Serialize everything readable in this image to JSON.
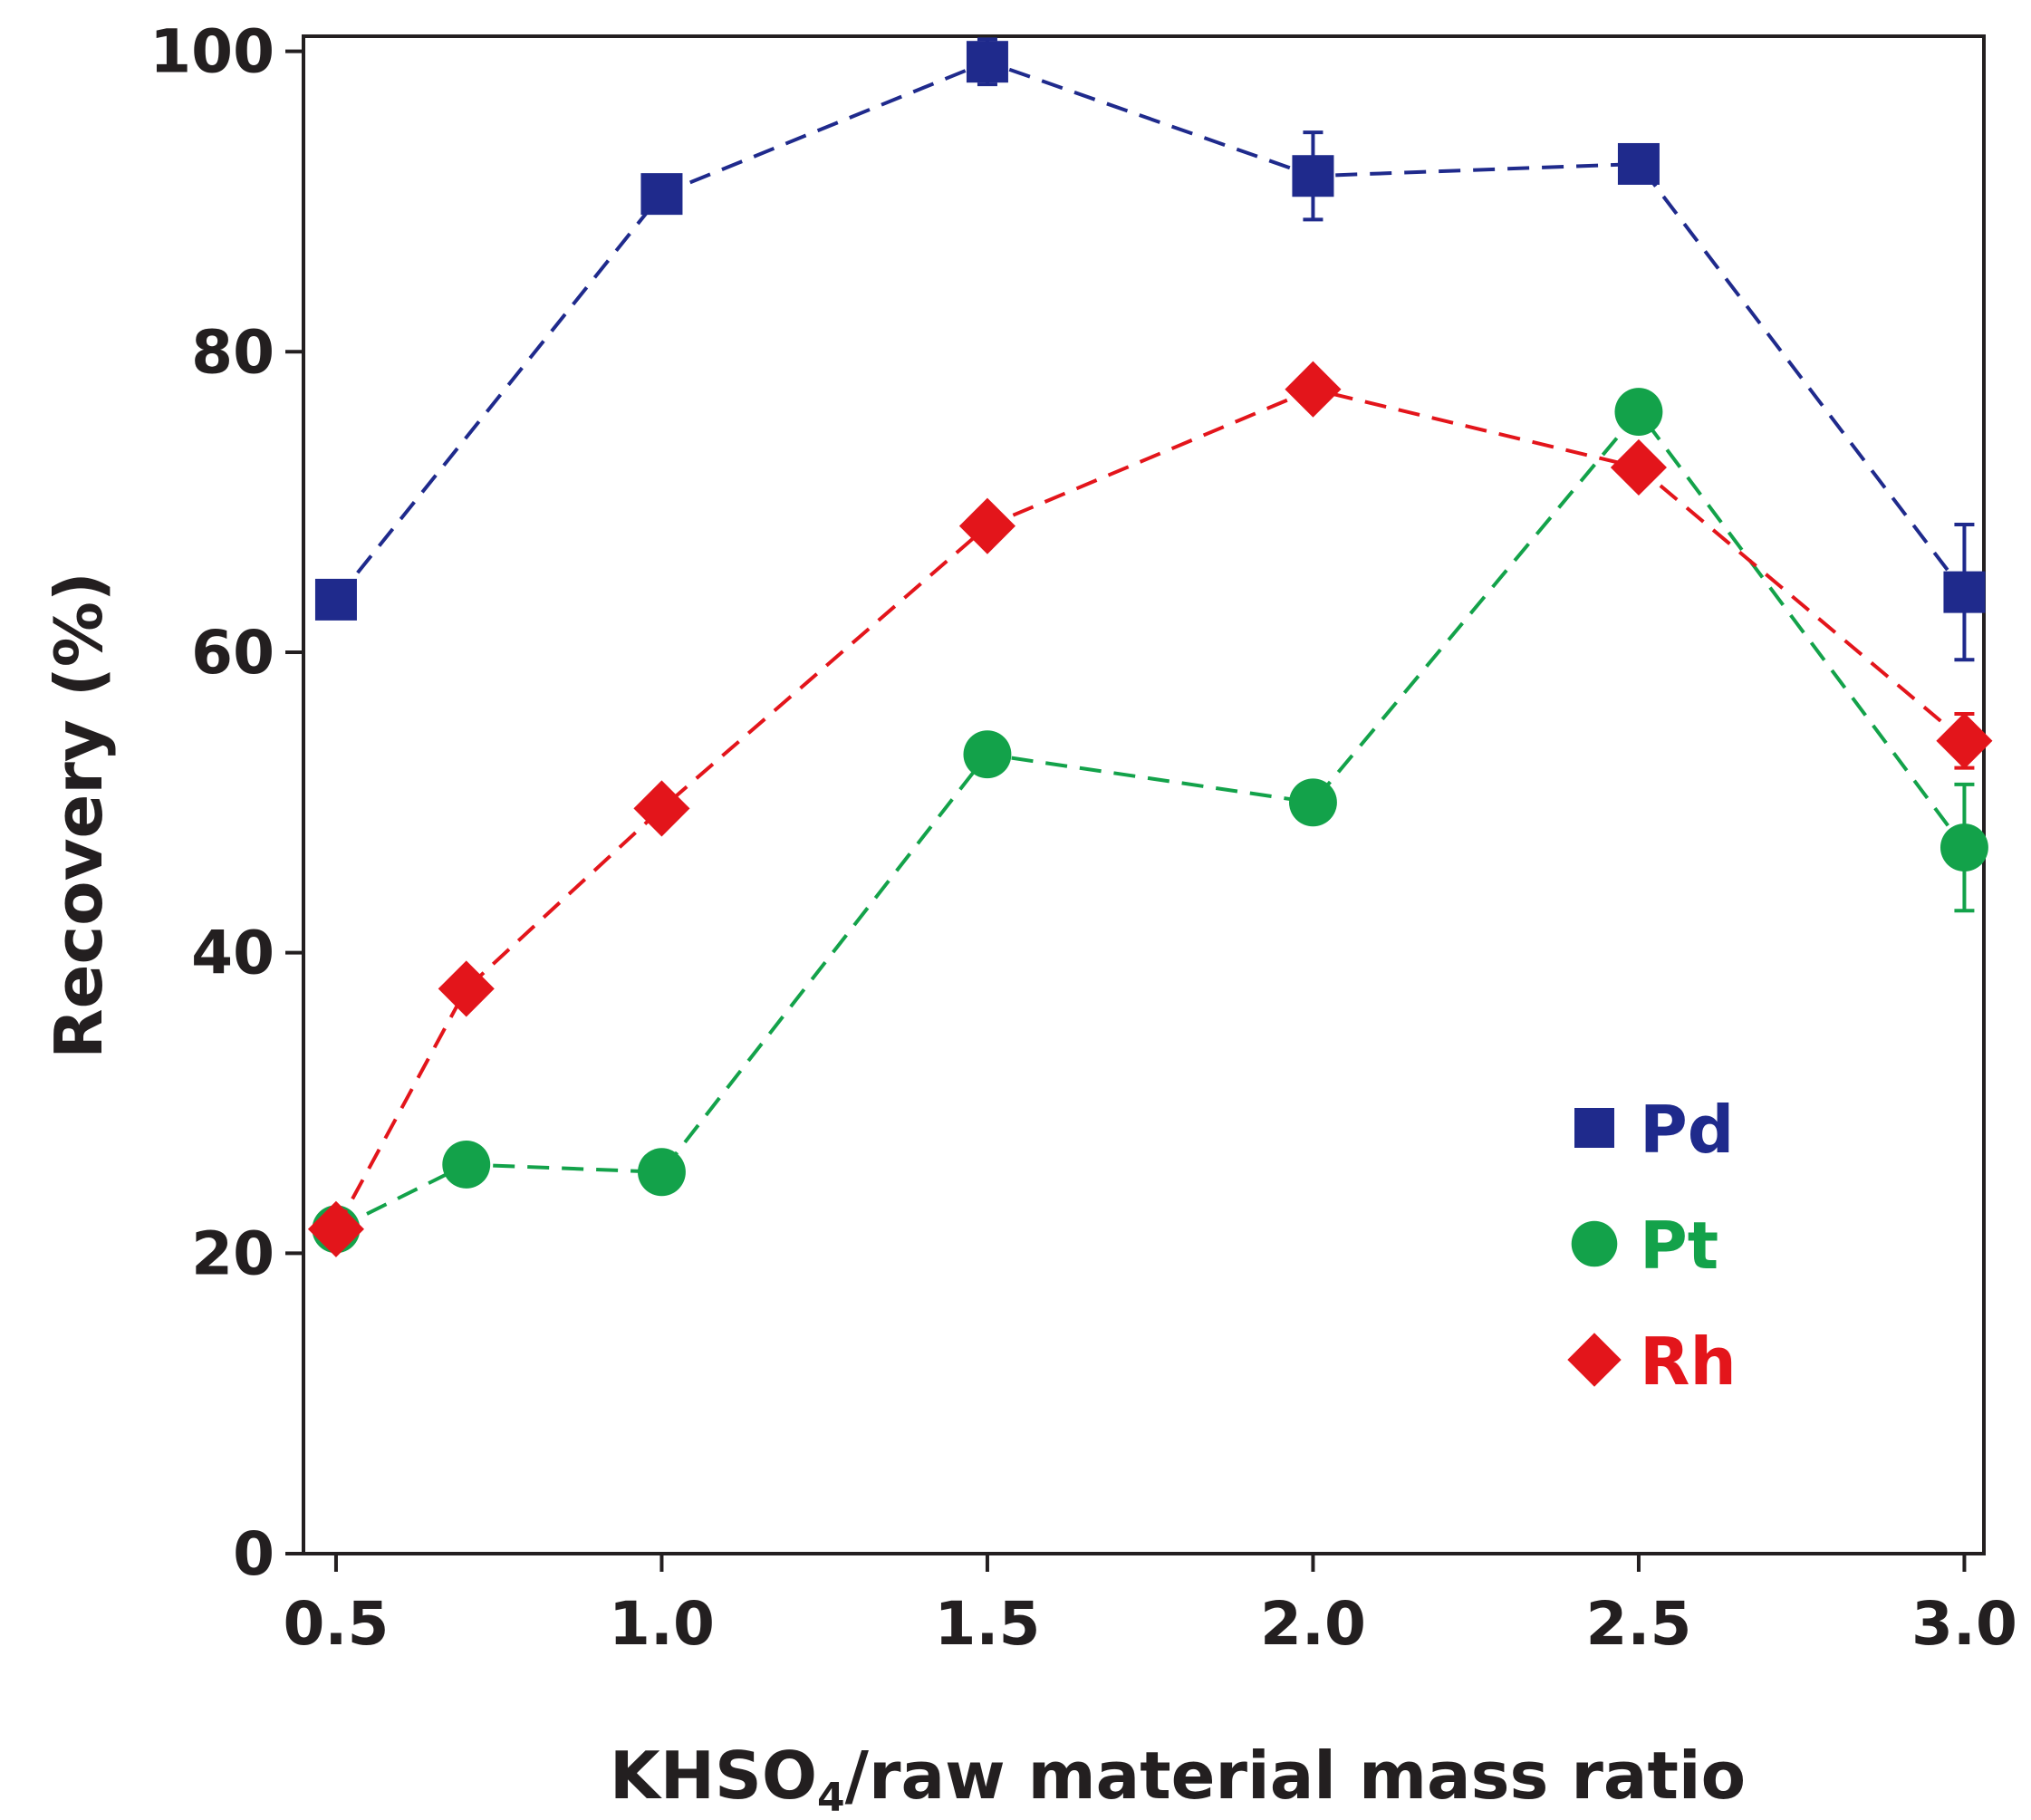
{
  "chart_data": {
    "type": "line",
    "title": "",
    "xlabel_main": "KHSO",
    "xlabel_sub": "4",
    "xlabel_rest": "/raw material mass ratio",
    "ylabel": "Recovery (%)",
    "xlim": [
      0.45,
      3.03
    ],
    "ylim": [
      0,
      101
    ],
    "x_ticks": [
      0.5,
      1.0,
      1.5,
      2.0,
      2.5,
      3.0
    ],
    "x_tick_labels": [
      "0.5",
      "1.0",
      "1.5",
      "2.0",
      "2.5",
      "3.0"
    ],
    "y_ticks": [
      0,
      20,
      40,
      60,
      80,
      100
    ],
    "y_tick_labels": [
      "0",
      "20",
      "40",
      "60",
      "80",
      "100"
    ],
    "line_style": "dashed",
    "legend_position": "bottom-right",
    "series": [
      {
        "name": "Pd",
        "color": "#1f2a8c",
        "marker": "square",
        "points": [
          {
            "x": 0.5,
            "y": 63.5,
            "err": 0
          },
          {
            "x": 1.0,
            "y": 90.5,
            "err": 0.6
          },
          {
            "x": 1.5,
            "y": 99.3,
            "err": 1.5
          },
          {
            "x": 2.0,
            "y": 91.7,
            "err": 2.9
          },
          {
            "x": 2.5,
            "y": 92.5,
            "err": 0
          },
          {
            "x": 3.0,
            "y": 64.0,
            "err": 4.5
          }
        ]
      },
      {
        "name": "Pt",
        "color": "#13a24a",
        "marker": "circle",
        "points": [
          {
            "x": 0.5,
            "y": 21.6,
            "err": 0
          },
          {
            "x": 0.7,
            "y": 25.9,
            "err": 0
          },
          {
            "x": 1.0,
            "y": 25.4,
            "err": 0
          },
          {
            "x": 1.5,
            "y": 53.2,
            "err": 0
          },
          {
            "x": 2.0,
            "y": 50.0,
            "err": 0
          },
          {
            "x": 2.5,
            "y": 76.0,
            "err": 0
          },
          {
            "x": 3.0,
            "y": 47.0,
            "err": 4.2
          }
        ]
      },
      {
        "name": "Rh",
        "color": "#e3151b",
        "marker": "diamond",
        "points": [
          {
            "x": 0.5,
            "y": 21.6,
            "err": 0
          },
          {
            "x": 0.7,
            "y": 37.6,
            "err": 0
          },
          {
            "x": 1.0,
            "y": 49.6,
            "err": 0
          },
          {
            "x": 1.5,
            "y": 68.4,
            "err": 0
          },
          {
            "x": 2.0,
            "y": 77.5,
            "err": 0
          },
          {
            "x": 2.5,
            "y": 72.3,
            "err": 0
          },
          {
            "x": 3.0,
            "y": 54.1,
            "err": 1.8
          }
        ]
      }
    ]
  }
}
